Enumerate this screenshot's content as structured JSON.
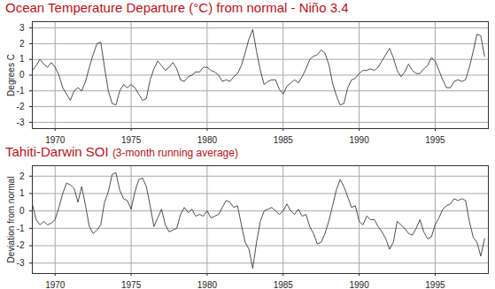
{
  "chart_data": [
    {
      "type": "area",
      "title": "Ocean Temperature Departure (°C) from normal - Niño 3.4",
      "y_label": "Degrees C",
      "x": [
        1968.5,
        1968.75,
        1969,
        1969.25,
        1969.5,
        1969.75,
        1970,
        1970.25,
        1970.5,
        1970.75,
        1971,
        1971.25,
        1971.5,
        1971.75,
        1972,
        1972.25,
        1972.5,
        1972.75,
        1973,
        1973.25,
        1973.5,
        1973.75,
        1974,
        1974.25,
        1974.5,
        1974.75,
        1975,
        1975.25,
        1975.5,
        1975.75,
        1976,
        1976.25,
        1976.5,
        1976.75,
        1977,
        1977.25,
        1977.5,
        1977.75,
        1978,
        1978.25,
        1978.5,
        1978.75,
        1979,
        1979.25,
        1979.5,
        1979.75,
        1980,
        1980.25,
        1980.5,
        1980.75,
        1981,
        1981.25,
        1981.5,
        1981.75,
        1982,
        1982.25,
        1982.5,
        1982.75,
        1983,
        1983.25,
        1983.5,
        1983.75,
        1984,
        1984.25,
        1984.5,
        1984.75,
        1985,
        1985.25,
        1985.5,
        1985.75,
        1986,
        1986.25,
        1986.5,
        1986.75,
        1987,
        1987.25,
        1987.5,
        1987.75,
        1988,
        1988.25,
        1988.5,
        1988.75,
        1989,
        1989.25,
        1989.5,
        1989.75,
        1990,
        1990.25,
        1990.5,
        1990.75,
        1991,
        1991.25,
        1991.5,
        1991.75,
        1992,
        1992.25,
        1992.5,
        1992.75,
        1993,
        1993.25,
        1993.5,
        1993.75,
        1994,
        1994.25,
        1994.5,
        1994.75,
        1995,
        1995.25,
        1995.5,
        1995.75,
        1996,
        1996.25,
        1996.5,
        1996.75,
        1997,
        1997.25,
        1997.5,
        1997.75,
        1998,
        1998.25
      ],
      "values": [
        0.3,
        0.6,
        1.0,
        0.7,
        0.5,
        0.8,
        0.5,
        0.0,
        -0.8,
        -1.2,
        -1.6,
        -1.0,
        -0.8,
        -1.0,
        -0.4,
        0.5,
        1.3,
        2.0,
        2.1,
        0.5,
        -1.0,
        -1.8,
        -1.9,
        -1.0,
        -0.6,
        -0.8,
        -0.6,
        -0.8,
        -1.2,
        -1.6,
        -1.5,
        -0.3,
        0.4,
        0.9,
        0.6,
        0.3,
        0.5,
        0.8,
        0.4,
        -0.3,
        -0.4,
        -0.1,
        0.0,
        0.2,
        0.2,
        0.5,
        0.5,
        0.3,
        0.2,
        0.0,
        -0.4,
        -0.3,
        -0.4,
        -0.1,
        0.1,
        0.6,
        1.4,
        2.3,
        2.9,
        1.5,
        0.3,
        -0.6,
        -0.4,
        -0.3,
        -0.3,
        -0.9,
        -1.2,
        -0.7,
        -0.5,
        -0.3,
        -0.5,
        -0.1,
        0.4,
        1.0,
        1.2,
        1.3,
        1.6,
        1.4,
        0.7,
        -0.5,
        -1.3,
        -1.9,
        -1.8,
        -0.8,
        -0.3,
        -0.2,
        0.1,
        0.3,
        0.3,
        0.4,
        0.3,
        0.5,
        0.9,
        1.3,
        1.7,
        1.1,
        0.3,
        -0.1,
        0.2,
        0.7,
        0.3,
        0.1,
        0.1,
        0.4,
        0.6,
        1.1,
        0.9,
        0.3,
        -0.3,
        -0.8,
        -0.8,
        -0.4,
        -0.3,
        -0.4,
        -0.3,
        0.5,
        1.5,
        2.6,
        2.5,
        1.2
      ],
      "colors": [
        "#ee1b1b",
        "#6d8ec4"
      ],
      "xlim": [
        1968.5,
        1998.5
      ],
      "xticks": [
        1970,
        1975,
        1980,
        1985,
        1990,
        1995
      ],
      "ylim": [
        -3.4,
        3.4
      ],
      "yticks": [
        -3,
        -2,
        -1,
        0,
        1,
        2,
        3
      ],
      "grid": true
    },
    {
      "type": "area",
      "title": "Tahiti-Darwin SOI",
      "subtitle": "(3-month running average)",
      "y_label": "Deviation from normal",
      "x": [
        1968.5,
        1968.75,
        1969,
        1969.25,
        1969.5,
        1969.75,
        1970,
        1970.25,
        1970.5,
        1970.75,
        1971,
        1971.25,
        1971.5,
        1971.75,
        1972,
        1972.25,
        1972.5,
        1972.75,
        1973,
        1973.25,
        1973.5,
        1973.75,
        1974,
        1974.25,
        1974.5,
        1974.75,
        1975,
        1975.25,
        1975.5,
        1975.75,
        1976,
        1976.25,
        1976.5,
        1976.75,
        1977,
        1977.25,
        1977.5,
        1977.75,
        1978,
        1978.25,
        1978.5,
        1978.75,
        1979,
        1979.25,
        1979.5,
        1979.75,
        1980,
        1980.25,
        1980.5,
        1980.75,
        1981,
        1981.25,
        1981.5,
        1981.75,
        1982,
        1982.25,
        1982.5,
        1982.75,
        1983,
        1983.25,
        1983.5,
        1983.75,
        1984,
        1984.25,
        1984.5,
        1984.75,
        1985,
        1985.25,
        1985.5,
        1985.75,
        1986,
        1986.25,
        1986.5,
        1986.75,
        1987,
        1987.25,
        1987.5,
        1987.75,
        1988,
        1988.25,
        1988.5,
        1988.75,
        1989,
        1989.25,
        1989.5,
        1989.75,
        1990,
        1990.25,
        1990.5,
        1990.75,
        1991,
        1991.25,
        1991.5,
        1991.75,
        1992,
        1992.25,
        1992.5,
        1992.75,
        1993,
        1993.25,
        1993.5,
        1993.75,
        1994,
        1994.25,
        1994.5,
        1994.75,
        1995,
        1995.25,
        1995.5,
        1995.75,
        1996,
        1996.25,
        1996.5,
        1996.75,
        1997,
        1997.25,
        1997.5,
        1997.75,
        1998,
        1998.25
      ],
      "values": [
        0.4,
        -0.5,
        -0.8,
        -0.6,
        -0.8,
        -0.7,
        -0.5,
        0.2,
        1.0,
        1.6,
        1.5,
        1.3,
        0.5,
        1.4,
        0.3,
        -0.9,
        -1.3,
        -1.1,
        -0.8,
        0.5,
        1.1,
        2.1,
        2.2,
        1.2,
        0.7,
        0.6,
        0.1,
        1.1,
        1.8,
        1.9,
        1.4,
        0.3,
        -0.9,
        -0.4,
        0.1,
        -0.8,
        -1.2,
        -1.1,
        -1.0,
        -0.2,
        0.2,
        -0.1,
        0.1,
        -0.3,
        -0.2,
        -0.3,
        0.0,
        -0.4,
        -0.3,
        -0.2,
        0.2,
        0.6,
        0.5,
        0.2,
        0.3,
        -0.8,
        -1.8,
        -2.2,
        -3.3,
        -1.8,
        -0.6,
        0.0,
        0.1,
        0.2,
        0.0,
        -0.2,
        0.0,
        0.4,
        0.0,
        -0.2,
        0.1,
        -0.3,
        -0.2,
        -0.9,
        -1.3,
        -1.9,
        -1.8,
        -1.3,
        -0.6,
        0.3,
        1.2,
        1.8,
        1.4,
        0.8,
        0.2,
        0.3,
        -0.6,
        -0.8,
        -0.3,
        -0.5,
        -0.5,
        -0.9,
        -1.2,
        -1.6,
        -2.2,
        -1.8,
        -0.6,
        -0.8,
        -1.0,
        -1.3,
        -1.4,
        -1.0,
        -0.5,
        -1.2,
        -1.6,
        -1.5,
        -0.8,
        -0.4,
        0.1,
        0.3,
        0.4,
        0.7,
        0.6,
        0.7,
        0.6,
        -0.6,
        -1.5,
        -1.8,
        -2.6,
        -1.6
      ],
      "colors": [
        "#6d8ec4",
        "#ee1b1b"
      ],
      "xlim": [
        1968.5,
        1998.5
      ],
      "xticks": [
        1970,
        1975,
        1980,
        1985,
        1990,
        1995
      ],
      "ylim": [
        -3.6,
        2.6
      ],
      "yticks": [
        -3,
        -2,
        -1,
        0,
        1,
        2
      ],
      "grid": true
    }
  ]
}
